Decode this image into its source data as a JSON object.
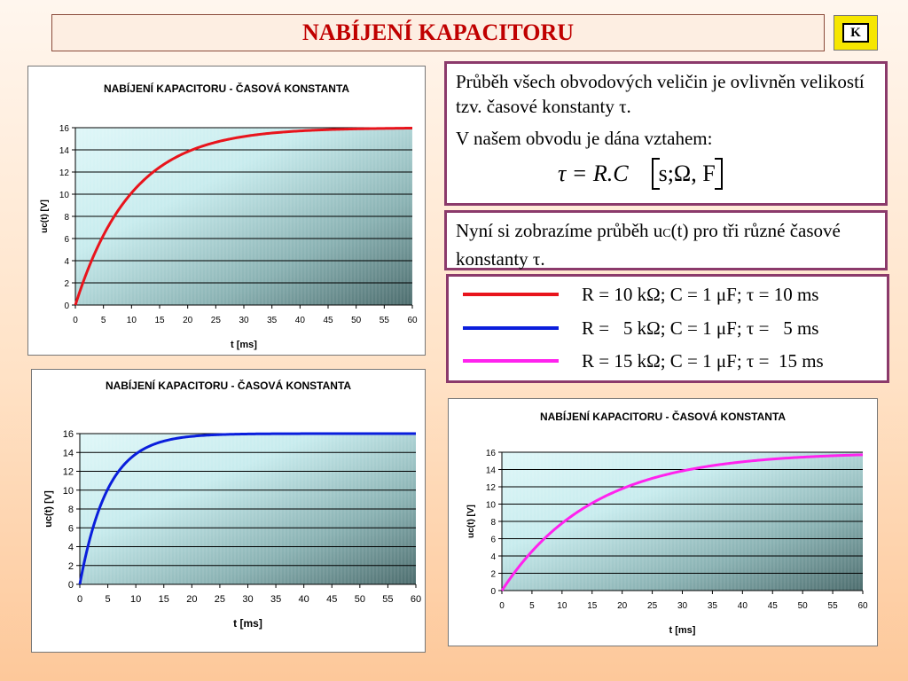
{
  "slide": {
    "title": "NABÍJENÍ KAPACITORU",
    "nav_button_label": "K"
  },
  "info": {
    "paragraph1": "Průběh všech obvodových veličin je ovlivněn velikostí tzv. časové konstanty τ.",
    "paragraph2": "V našem obvodu je dána vztahem:",
    "formula_lhs": "τ = R.C",
    "formula_units": "s;Ω, F",
    "paragraph3_pre": "Nyní si zobrazíme průběh u",
    "paragraph3_sub": "C",
    "paragraph3_post": "(t) pro tři různé časové konstanty τ."
  },
  "legend": [
    {
      "text": "R = 10 kΩ; C = 1 μF; τ = 10 ms",
      "color": "#e8141c"
    },
    {
      "text": "R =   5 kΩ; C = 1 μF; τ =   5 ms",
      "color": "#0a1edc"
    },
    {
      "text": "R = 15 kΩ; C = 1 μF; τ =  15 ms",
      "color": "#ff22ee"
    }
  ],
  "chart_data": [
    {
      "type": "line",
      "title": "NABÍJENÍ KAPACITORU - ČASOVÁ KONSTANTA",
      "xlabel": "t [ms]",
      "ylabel": "uc(t) [V]",
      "x_ticks": [
        0,
        5,
        10,
        15,
        20,
        25,
        30,
        35,
        40,
        45,
        50,
        55,
        60
      ],
      "y_ticks": [
        0,
        2,
        4,
        6,
        8,
        10,
        12,
        14,
        16
      ],
      "xlim": [
        0,
        60
      ],
      "ylim": [
        0,
        16
      ],
      "grid": true,
      "legend": "none",
      "series": [
        {
          "color": "#e8141c",
          "tau_ms": 10,
          "Umax_V": 16,
          "x": [
            0,
            2,
            4,
            6,
            8,
            10,
            12,
            14,
            16,
            18,
            20,
            25,
            30,
            35,
            40,
            45,
            50,
            55,
            60
          ],
          "y": [
            0,
            2.9,
            5.27,
            7.22,
            8.81,
            10.11,
            11.18,
            12.05,
            12.77,
            13.36,
            13.83,
            14.69,
            15.2,
            15.52,
            15.71,
            15.82,
            15.89,
            15.93,
            15.96
          ]
        }
      ]
    },
    {
      "type": "line",
      "title": "NABÍJENÍ KAPACITORU - ČASOVÁ KONSTANTA",
      "xlabel": "t [ms]",
      "ylabel": "uc(t) [V]",
      "x_ticks": [
        0,
        5,
        10,
        15,
        20,
        25,
        30,
        35,
        40,
        45,
        50,
        55,
        60
      ],
      "y_ticks": [
        0,
        2,
        4,
        6,
        8,
        10,
        12,
        14,
        16
      ],
      "xlim": [
        0,
        60
      ],
      "ylim": [
        0,
        16
      ],
      "grid": true,
      "legend": "none",
      "series": [
        {
          "color": "#0a1edc",
          "tau_ms": 5,
          "Umax_V": 16,
          "x": [
            0,
            1,
            2,
            3,
            4,
            5,
            6,
            7,
            8,
            10,
            12,
            14,
            16,
            18,
            20,
            25,
            30,
            35,
            40,
            50,
            60
          ],
          "y": [
            0,
            2.9,
            5.27,
            7.22,
            8.81,
            10.11,
            11.18,
            12.05,
            12.77,
            13.83,
            14.55,
            15.03,
            15.34,
            15.55,
            15.71,
            15.89,
            15.96,
            15.99,
            15.99,
            16,
            16
          ]
        }
      ]
    },
    {
      "type": "line",
      "title": "NABÍJENÍ KAPACITORU - ČASOVÁ KONSTANTA",
      "xlabel": "t [ms]",
      "ylabel": "uc(t) [V]",
      "x_ticks": [
        0,
        5,
        10,
        15,
        20,
        25,
        30,
        35,
        40,
        45,
        50,
        55,
        60
      ],
      "y_ticks": [
        0,
        2,
        4,
        6,
        8,
        10,
        12,
        14,
        16
      ],
      "xlim": [
        0,
        60
      ],
      "ylim": [
        0,
        16
      ],
      "grid": true,
      "legend": "none",
      "series": [
        {
          "color": "#ff22ee",
          "tau_ms": 15,
          "Umax_V": 16,
          "x": [
            0,
            3,
            6,
            9,
            12,
            15,
            18,
            21,
            24,
            27,
            30,
            35,
            40,
            45,
            50,
            55,
            60
          ],
          "y": [
            0,
            2.9,
            5.27,
            7.22,
            8.81,
            10.11,
            11.18,
            12.05,
            12.77,
            13.36,
            13.83,
            14.49,
            14.95,
            15.2,
            15.43,
            15.59,
            15.7
          ]
        }
      ]
    }
  ]
}
